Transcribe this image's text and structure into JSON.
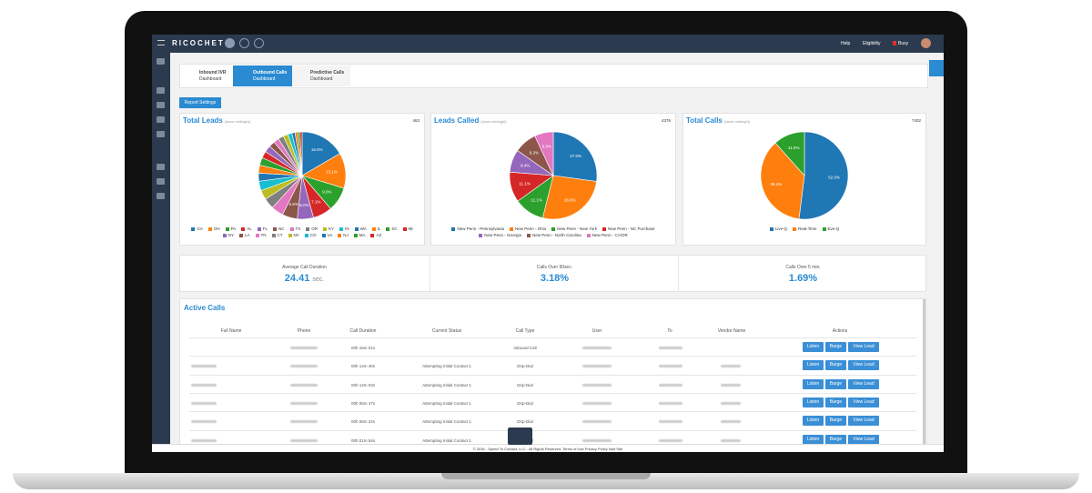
{
  "header": {
    "brand": "RICOCHET",
    "menu": [
      "Help",
      "Eligibility",
      "Busy"
    ]
  },
  "tabs": [
    {
      "title": "Inbound IVR",
      "subtitle": "Dashboard"
    },
    {
      "title": "Outbound Calls",
      "subtitle": "Dashboard"
    },
    {
      "title": "Predictive Calls",
      "subtitle": "Dashboard"
    }
  ],
  "report_settings": "Report Settings",
  "charts": [
    {
      "type": "pie",
      "title": "Total Leads",
      "subtitle": "(since midnight)",
      "total": 463,
      "categories": [
        "GA",
        "OH",
        "PA",
        "AL",
        "FL",
        "NC",
        "TX",
        "OR",
        "KY",
        "IN",
        "WA",
        "IL",
        "SC",
        "MI",
        "NY",
        "LA",
        "TN",
        "CT",
        "NV",
        "CO",
        "VA",
        "NJ",
        "MA",
        "AZ"
      ],
      "values": [
        16.6,
        13.1,
        9.0,
        7.1,
        6.0,
        5.6,
        4.5,
        4.0,
        3.5,
        3.5,
        3.0,
        3.0,
        2.8,
        2.5,
        2.5,
        2.2,
        2.0,
        2.0,
        1.8,
        1.5,
        1.2,
        1.0,
        0.8,
        0.8
      ],
      "value_labels": [
        "16.6%",
        "13.1%",
        "9.0%",
        "7.1%",
        "6.0%",
        "5.6%",
        null,
        null,
        null,
        null,
        null,
        null,
        null,
        null,
        null,
        null,
        null,
        null,
        null,
        null,
        null,
        null,
        null,
        null
      ],
      "colors": [
        "#1f77b4",
        "#ff7f0e",
        "#2ca02c",
        "#d62728",
        "#9467bd",
        "#8c564b",
        "#e377c2",
        "#7f7f7f",
        "#bcbd22",
        "#17becf",
        "#1f77b4",
        "#ff7f0e",
        "#2ca02c",
        "#d62728",
        "#9467bd",
        "#8c564b",
        "#e377c2",
        "#7f7f7f",
        "#bcbd22",
        "#17becf",
        "#1f77b4",
        "#ff7f0e",
        "#2ca02c",
        "#d62728"
      ]
    },
    {
      "type": "pie",
      "title": "Leads Called",
      "subtitle": "(since midnight)",
      "total": 4376,
      "categories": [
        "New Penn - Pennsylvania",
        "New Penn - Ohio",
        "New Penn - New York",
        "New Penn - NC Purchase",
        "New Penn - Georgia",
        "New Penn - North Carolina",
        "New Penn - CA/OR"
      ],
      "values": [
        27.0,
        26.6,
        11.1,
        11.1,
        8.4,
        8.3,
        6.9
      ],
      "value_labels": [
        "27.0%",
        "26.6%",
        "11.1%",
        "11.1%",
        "8.4%",
        "8.3%",
        "6.9%"
      ],
      "colors": [
        "#1f77b4",
        "#ff7f0e",
        "#2ca02c",
        "#d62728",
        "#9467bd",
        "#8c564b",
        "#e377c2"
      ]
    },
    {
      "type": "pie",
      "title": "Total Calls",
      "subtitle": "(since midnight)",
      "total": 7402,
      "categories": [
        "Live-Q",
        "Real-Time",
        "Eve-Q"
      ],
      "values": [
        52.0,
        36.4,
        11.6
      ],
      "value_labels": [
        "52.0%",
        "36.4%",
        "11.6%"
      ],
      "colors": [
        "#1f77b4",
        "#ff7f0e",
        "#2ca02c"
      ]
    }
  ],
  "stats": [
    {
      "label": "Average Call Duration",
      "value": 24.41,
      "unit": "sec."
    },
    {
      "label": "Calls Over 90sec.",
      "value": "3.18%"
    },
    {
      "label": "Calls Over 5 min.",
      "value": "1.69%"
    }
  ],
  "active_calls": {
    "title": "Active Calls",
    "columns": [
      "Full Name",
      "Phone",
      "Call Duration",
      "Current Status",
      "Call Type",
      "User",
      "To",
      "Vendor Name",
      "Actions"
    ],
    "actions": [
      "Listen",
      "Barge",
      "View Lead"
    ],
    "rows": [
      {
        "duration": "00h 15m 01s",
        "status": null,
        "call_type": "Inbound Call"
      },
      {
        "duration": "00h 14m 40s",
        "status": "Attempting Initial Contact 1",
        "call_type": "Drip-Dial"
      },
      {
        "duration": "00h 12m 03s",
        "status": "Attempting Initial Contact 1",
        "call_type": "Drip-Dial"
      },
      {
        "duration": "00h 06m 47s",
        "status": "Attempting Initial Contact 1",
        "call_type": "Drip-Dial"
      },
      {
        "duration": "00h 06m 22s",
        "status": "Attempting Initial Contact 1",
        "call_type": "Drip-Dial"
      },
      {
        "duration": "00h 01m 54s",
        "status": "Attempting Initial Contact 1",
        "call_type": "Drip-Dial"
      }
    ]
  },
  "footer": "© 2016 - Speed To Contact, LLC - All Rights Reserved. Terms of Use Privacy Policy Visit Site"
}
